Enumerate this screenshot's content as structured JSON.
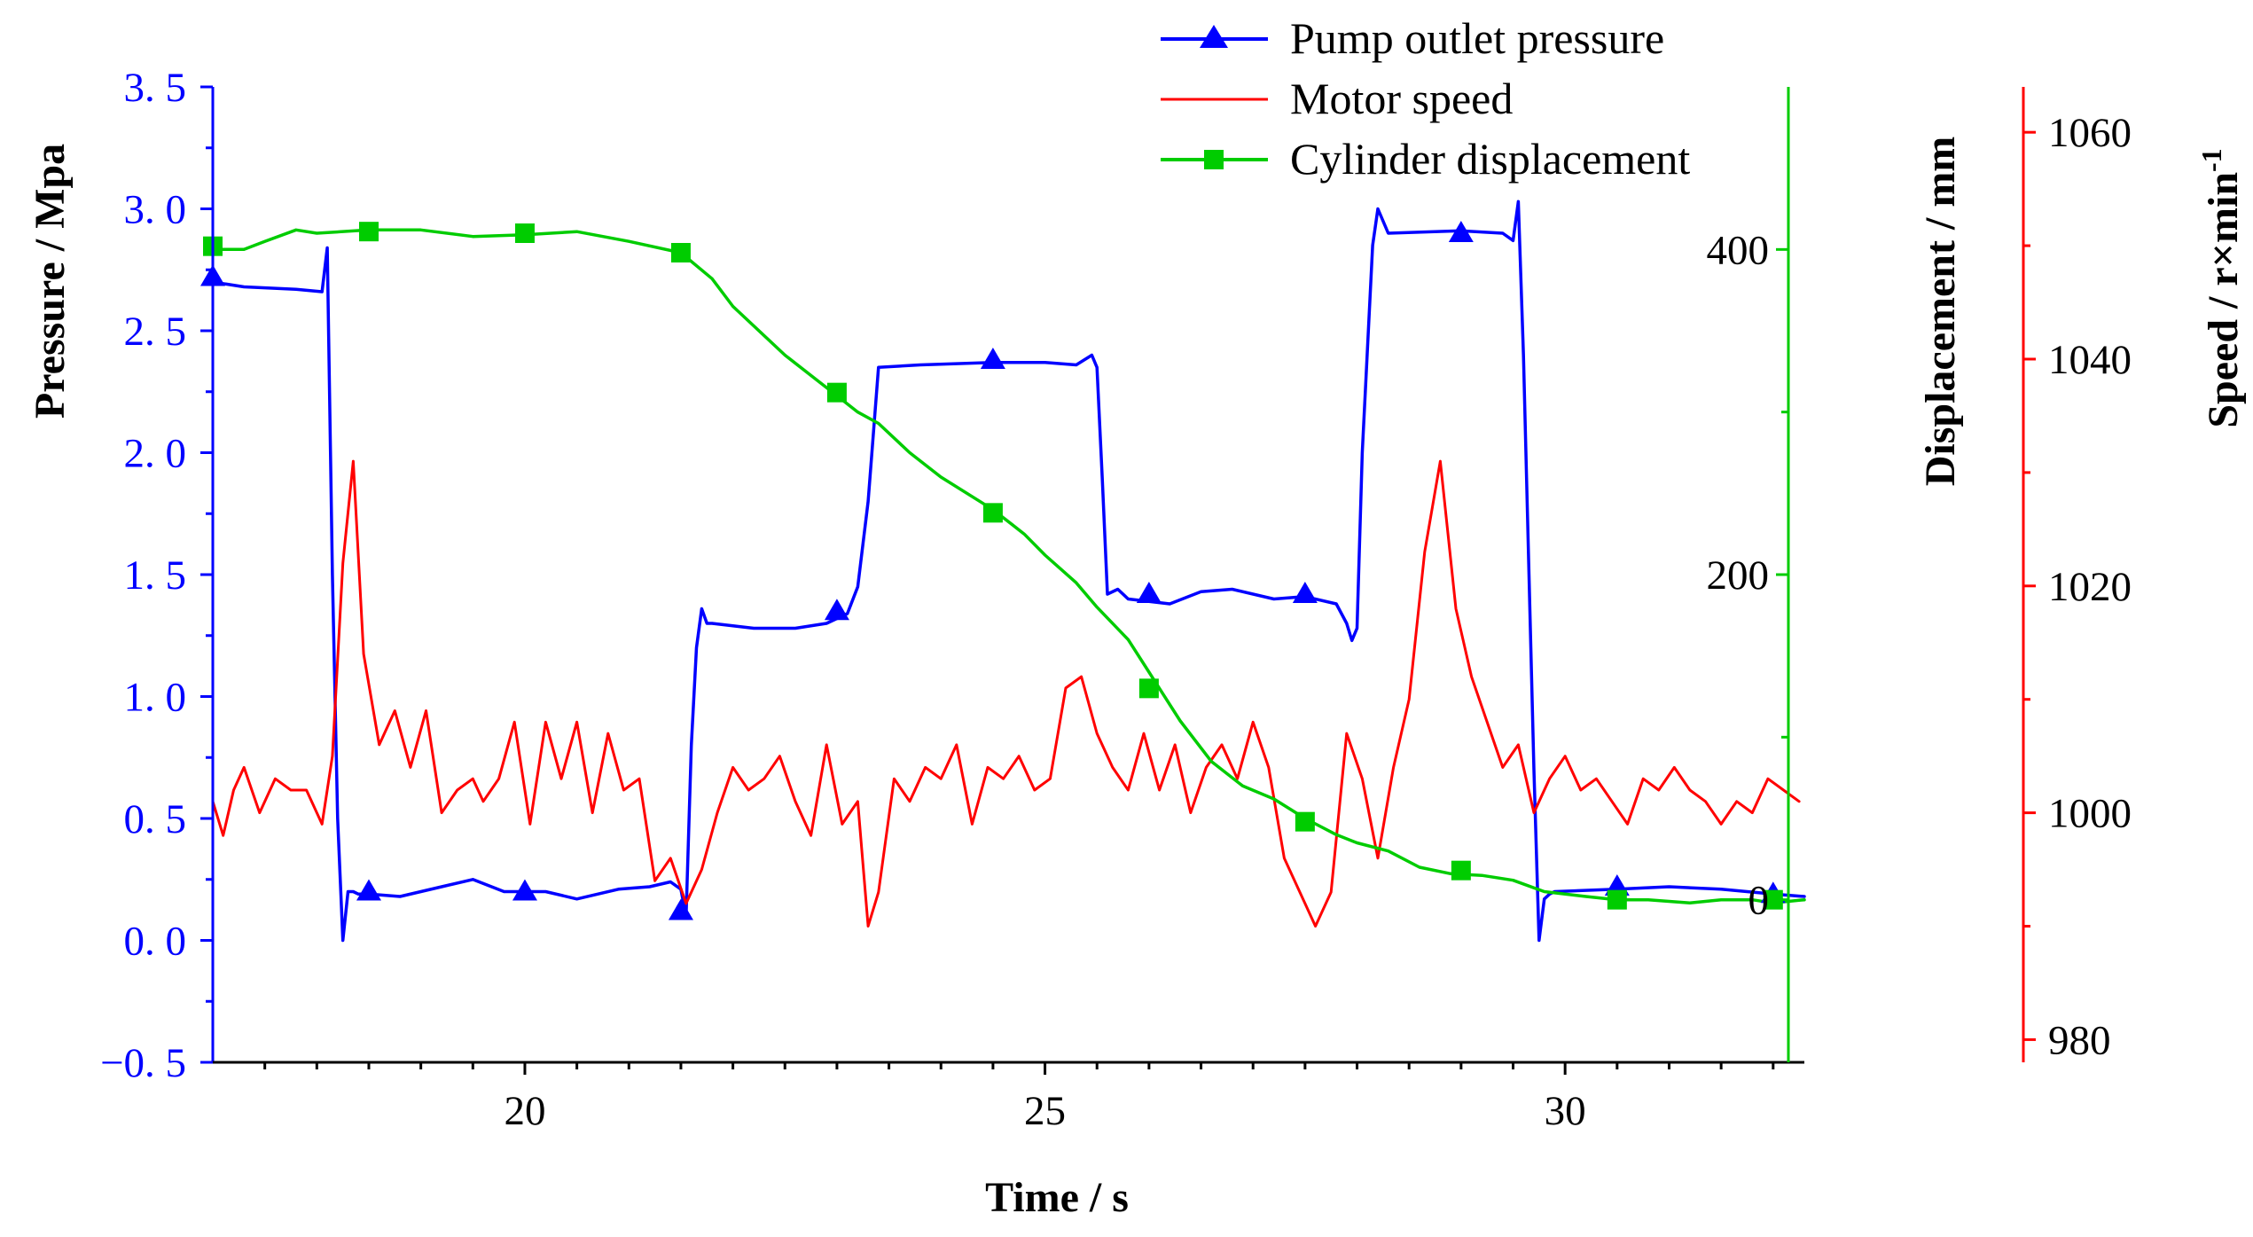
{
  "colors": {
    "pressure": "#0000FF",
    "speed": "#FF0000",
    "displacement": "#00CC00",
    "axis": "#000000"
  },
  "axes": {
    "x_title": "Time / s",
    "y_left_title": "Pressure / Mpa",
    "y_right1_title": "Displacement / mm",
    "y_right2_title_main": "Speed / r×min",
    "y_right2_title_sup": "-1",
    "x_tick_labels": [
      "20",
      "25",
      "30"
    ],
    "y_left_tick_labels": [
      "3. 5",
      "3. 0",
      "2. 5",
      "2. 0",
      "1. 5",
      "1. 0",
      "0. 5",
      "0. 0",
      "−0. 5"
    ],
    "y_right1_tick_labels": [
      "400",
      "200",
      "0"
    ],
    "y_right2_tick_labels": [
      "1060",
      "1040",
      "1020",
      "1000",
      "980"
    ]
  },
  "legend": {
    "items": [
      {
        "label": "Pump outlet pressure",
        "color": "#0000FF",
        "marker": "triangle"
      },
      {
        "label": "Motor speed",
        "color": "#FF0000",
        "marker": "none"
      },
      {
        "label": "Cylinder displacement",
        "color": "#00CC00",
        "marker": "square"
      }
    ]
  },
  "chart_data": {
    "type": "line",
    "xlabel": "Time / s",
    "xlim": [
      17,
      32.3
    ],
    "x_ticks": [
      20,
      25,
      30
    ],
    "x_minor_ticks": [
      17.5,
      18,
      18.5,
      19,
      19.5,
      20.5,
      21,
      21.5,
      22,
      22.5,
      23,
      23.5,
      24,
      24.5,
      25.5,
      26,
      26.5,
      27,
      27.5,
      28,
      28.5,
      29,
      29.5,
      30.5,
      31,
      31.5,
      32
    ],
    "y_axes": {
      "left": {
        "label": "Pressure / Mpa",
        "lim": [
          -0.5,
          3.5
        ],
        "ticks": [
          3.5,
          3.0,
          2.5,
          2.0,
          1.5,
          1.0,
          0.5,
          0.0,
          -0.5
        ],
        "minor_ticks": [
          3.25,
          2.75,
          2.25,
          1.75,
          1.25,
          0.75,
          0.25,
          -0.25
        ]
      },
      "right1": {
        "label": "Displacement / mm",
        "lim": [
          -100,
          500
        ],
        "ticks": [
          400,
          200,
          0
        ],
        "minor_ticks": [
          300,
          100
        ]
      },
      "right2": {
        "label": "Speed / r×min-1",
        "lim": [
          978,
          1064
        ],
        "ticks": [
          1060,
          1040,
          1020,
          1000,
          980
        ],
        "minor_ticks": [
          1050,
          1030,
          1010,
          990
        ]
      }
    },
    "legend_position": "top-right",
    "grid": false,
    "series": [
      {
        "name": "Pump outlet pressure",
        "axis": "left",
        "color": "#0000FF",
        "marker": "triangle",
        "x": [
          17.0,
          17.3,
          17.8,
          18.05,
          18.1,
          18.15,
          18.2,
          18.25,
          18.3,
          18.35,
          18.4,
          18.5,
          18.8,
          19.2,
          19.5,
          19.8,
          20.2,
          20.5,
          20.9,
          21.2,
          21.4,
          21.5,
          21.55,
          21.6,
          21.65,
          21.7,
          21.75,
          21.8,
          22.2,
          22.6,
          22.9,
          23.1,
          23.2,
          23.3,
          23.4,
          23.8,
          24.5,
          25.0,
          25.3,
          25.45,
          25.5,
          25.55,
          25.6,
          25.7,
          25.8,
          26.2,
          26.5,
          26.8,
          27.2,
          27.5,
          27.8,
          27.9,
          27.95,
          28.0,
          28.05,
          28.15,
          28.2,
          28.3,
          29.0,
          29.4,
          29.5,
          29.55,
          29.6,
          29.7,
          29.75,
          29.8,
          29.85,
          29.9,
          30.5,
          31.0,
          31.5,
          32.0,
          32.3
        ],
        "y": [
          2.7,
          2.68,
          2.67,
          2.66,
          2.84,
          1.5,
          0.5,
          0.0,
          0.2,
          0.2,
          0.19,
          0.19,
          0.18,
          0.22,
          0.25,
          0.2,
          0.2,
          0.17,
          0.21,
          0.22,
          0.24,
          0.21,
          0.1,
          0.8,
          1.2,
          1.36,
          1.3,
          1.3,
          1.28,
          1.28,
          1.3,
          1.34,
          1.45,
          1.8,
          2.35,
          2.36,
          2.37,
          2.37,
          2.36,
          2.4,
          2.35,
          1.9,
          1.42,
          1.44,
          1.4,
          1.38,
          1.43,
          1.44,
          1.4,
          1.41,
          1.38,
          1.3,
          1.23,
          1.28,
          2.0,
          2.85,
          3.0,
          2.9,
          2.91,
          2.9,
          2.87,
          3.03,
          2.4,
          0.7,
          0.0,
          0.17,
          0.19,
          0.2,
          0.21,
          0.22,
          0.21,
          0.19,
          0.18
        ]
      },
      {
        "name": "Motor speed",
        "axis": "right2",
        "color": "#FF0000",
        "marker": "none",
        "x": [
          17.0,
          17.1,
          17.2,
          17.3,
          17.45,
          17.6,
          17.75,
          17.9,
          18.05,
          18.15,
          18.25,
          18.35,
          18.45,
          18.6,
          18.75,
          18.9,
          19.05,
          19.2,
          19.35,
          19.5,
          19.6,
          19.75,
          19.9,
          20.05,
          20.2,
          20.35,
          20.5,
          20.65,
          20.8,
          20.95,
          21.1,
          21.25,
          21.4,
          21.55,
          21.7,
          21.85,
          22.0,
          22.15,
          22.3,
          22.45,
          22.6,
          22.75,
          22.9,
          23.05,
          23.2,
          23.3,
          23.4,
          23.55,
          23.7,
          23.85,
          24.0,
          24.15,
          24.3,
          24.45,
          24.6,
          24.75,
          24.9,
          25.05,
          25.2,
          25.35,
          25.5,
          25.65,
          25.8,
          25.95,
          26.1,
          26.25,
          26.4,
          26.55,
          26.7,
          26.85,
          27.0,
          27.15,
          27.3,
          27.45,
          27.6,
          27.75,
          27.9,
          28.05,
          28.2,
          28.35,
          28.5,
          28.65,
          28.8,
          28.95,
          29.1,
          29.25,
          29.4,
          29.55,
          29.7,
          29.85,
          30.0,
          30.15,
          30.3,
          30.45,
          30.6,
          30.75,
          30.9,
          31.05,
          31.2,
          31.35,
          31.5,
          31.65,
          31.8,
          31.95,
          32.1,
          32.25
        ],
        "y": [
          1001,
          998,
          1002,
          1004,
          1000,
          1003,
          1002,
          1002,
          999,
          1005,
          1022,
          1031,
          1014,
          1006,
          1009,
          1004,
          1009,
          1000,
          1002,
          1003,
          1001,
          1003,
          1008,
          999,
          1008,
          1003,
          1008,
          1000,
          1007,
          1002,
          1003,
          994,
          996,
          992,
          995,
          1000,
          1004,
          1002,
          1003,
          1005,
          1001,
          998,
          1006,
          999,
          1001,
          990,
          993,
          1003,
          1001,
          1004,
          1003,
          1006,
          999,
          1004,
          1003,
          1005,
          1002,
          1003,
          1011,
          1012,
          1007,
          1004,
          1002,
          1007,
          1002,
          1006,
          1000,
          1004,
          1006,
          1003,
          1008,
          1004,
          996,
          993,
          990,
          993,
          1007,
          1003,
          996,
          1004,
          1010,
          1023,
          1031,
          1018,
          1012,
          1008,
          1004,
          1006,
          1000,
          1003,
          1005,
          1002,
          1003,
          1001,
          999,
          1003,
          1002,
          1004,
          1002,
          1001,
          999,
          1001,
          1000,
          1003,
          1002,
          1001
        ]
      },
      {
        "name": "Cylinder displacement",
        "axis": "right1",
        "color": "#00CC00",
        "marker": "square",
        "x": [
          17.0,
          17.3,
          17.5,
          17.8,
          18.0,
          18.5,
          19.0,
          19.5,
          20.0,
          20.5,
          21.0,
          21.5,
          21.8,
          22.0,
          22.5,
          22.8,
          23.0,
          23.2,
          23.4,
          23.7,
          24.0,
          24.5,
          24.8,
          25.0,
          25.3,
          25.5,
          25.8,
          26.0,
          26.3,
          26.6,
          26.9,
          27.2,
          27.5,
          27.8,
          28.0,
          28.3,
          28.6,
          28.9,
          29.2,
          29.5,
          29.8,
          30.2,
          30.5,
          30.8,
          31.2,
          31.5,
          31.8,
          32.0,
          32.3
        ],
        "y": [
          400,
          400,
          405,
          412,
          410,
          412,
          412,
          408,
          409,
          411,
          405,
          398,
          382,
          365,
          335,
          320,
          310,
          300,
          293,
          275,
          260,
          240,
          225,
          212,
          195,
          180,
          160,
          140,
          110,
          85,
          70,
          62,
          50,
          40,
          35,
          30,
          20,
          16,
          15,
          12,
          5,
          2,
          0,
          0,
          -2,
          0,
          0,
          -2,
          0
        ]
      }
    ],
    "marker_points": {
      "Pump outlet pressure": {
        "x": [
          17.0,
          18.5,
          20.0,
          21.5,
          23.0,
          24.5,
          26.0,
          27.5,
          29.0,
          30.5,
          32.0
        ],
        "y": [
          2.72,
          0.2,
          0.2,
          0.12,
          1.35,
          2.38,
          1.42,
          1.42,
          2.9,
          0.22,
          0.19
        ]
      },
      "Cylinder displacement": {
        "x": [
          17.0,
          18.5,
          20.0,
          21.5,
          23.0,
          24.5,
          26.0,
          27.5,
          29.0,
          30.5,
          32.0
        ],
        "y": [
          402,
          411,
          410,
          398,
          312,
          238,
          130,
          48,
          18,
          0,
          0
        ]
      }
    }
  }
}
